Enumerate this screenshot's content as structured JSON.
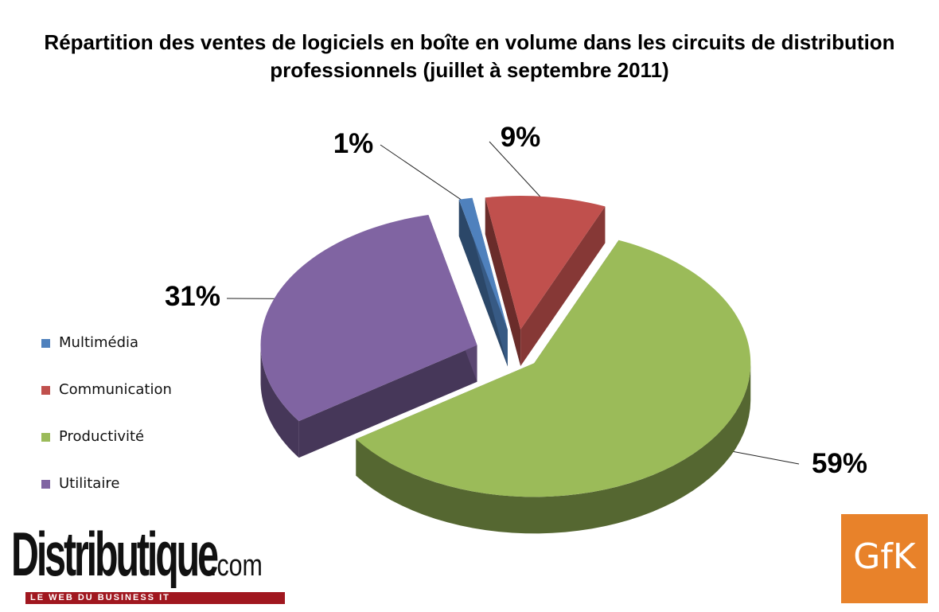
{
  "chart_data": {
    "type": "pie",
    "title": "Répartition des ventes de logiciels en boîte en volume dans les circuits de distribution professionnels (juillet à septembre 2011)",
    "slices": [
      {
        "label": "Multimédia",
        "value": 1,
        "value_label": "1%",
        "color": "#4f81bd"
      },
      {
        "label": "Communication",
        "value": 9,
        "value_label": "9%",
        "color": "#c0504d"
      },
      {
        "label": "Productivité",
        "value": 59,
        "value_label": "59%",
        "color": "#9bbb59"
      },
      {
        "label": "Utilitaire",
        "value": 31,
        "value_label": "31%",
        "color": "#8064a2"
      }
    ],
    "style": "3d-exploded",
    "legend_position": "left"
  },
  "logos": {
    "distributique_name": "Distributique",
    "distributique_tld": ".com",
    "distributique_tagline": "LE WEB DU BUSINESS IT",
    "gfk": "GfK"
  }
}
